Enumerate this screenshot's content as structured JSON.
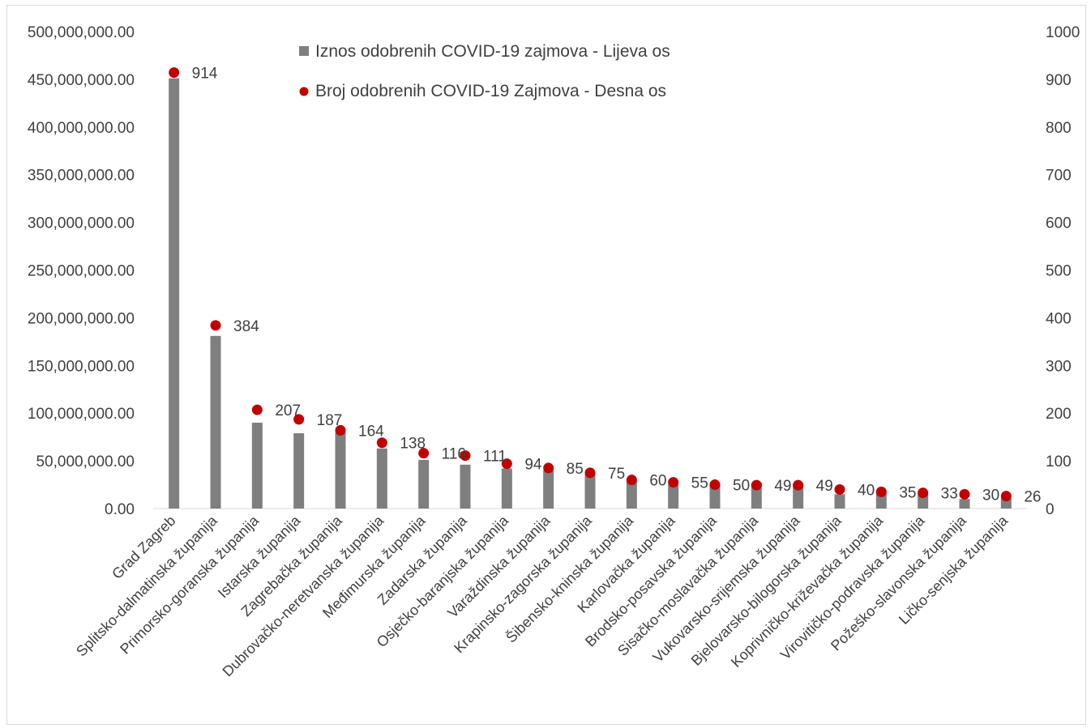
{
  "chart_data": {
    "type": "bar",
    "title": "",
    "xlabel": "",
    "ylabel": "",
    "categories": [
      "Grad Zagreb",
      "Splitsko-dalmatinska županija",
      "Primorsko-goranska županija",
      "Istarska županija",
      "Zagrebačka županija",
      "Dubrovačko-neretvanska županija",
      "Međimurska županija",
      "Zadarska županija",
      "Osječko-baranjska županija",
      "Varaždinska županija",
      "Krapinsko-zagorska županija",
      "Šibensko-kninska županija",
      "Karlovačka županija",
      "Brodsko-posavska županija",
      "Sisačko-moslavačka županija",
      "Vukovarsko-srijemska županija",
      "Bjelovarsko-bilogorska županija",
      "Koprivničko-križevačka županija",
      "Virovitičko-podravska županija",
      "Požeško-slavonska županija",
      "Ličko-senjska županija"
    ],
    "series": [
      {
        "name": "Iznos odobrenih COVID-19 zajmova - Lijeva os",
        "kind": "bar",
        "axis": "left",
        "color": "#7f7f7f",
        "values": [
          451000000,
          181000000,
          90000000,
          79000000,
          80000000,
          63000000,
          51000000,
          46000000,
          42000000,
          40000000,
          36000000,
          29000000,
          25000000,
          24000000,
          27000000,
          25000000,
          15000000,
          17000000,
          15000000,
          10000000,
          11000000
        ]
      },
      {
        "name": "Broj odobrenih COVID-19 Zajmova - Desna os",
        "kind": "scatter",
        "axis": "right",
        "color": "#c00000",
        "values": [
          914,
          384,
          207,
          187,
          164,
          138,
          116,
          111,
          94,
          85,
          75,
          60,
          55,
          50,
          49,
          49,
          40,
          35,
          33,
          30,
          26
        ]
      }
    ],
    "data_labels": [
      "914",
      "384",
      "207",
      "187",
      "164",
      "138",
      "116",
      "111",
      "94",
      "85",
      "75",
      "60",
      "55",
      "50",
      "49",
      "49",
      "40",
      "35",
      "33",
      "30",
      "26"
    ],
    "y_left": {
      "ylim": [
        0,
        500000000
      ],
      "ticks": [
        "0.00",
        "50,000,000.00",
        "100,000,000.00",
        "150,000,000.00",
        "200,000,000.00",
        "250,000,000.00",
        "300,000,000.00",
        "350,000,000.00",
        "400,000,000.00",
        "450,000,000.00",
        "500,000,000.00"
      ]
    },
    "y_right": {
      "ylim": [
        0,
        1000
      ],
      "ticks": [
        "0",
        "100",
        "200",
        "300",
        "400",
        "500",
        "600",
        "700",
        "800",
        "900",
        "1000"
      ]
    },
    "grid": false,
    "legend_position": "top-center"
  }
}
